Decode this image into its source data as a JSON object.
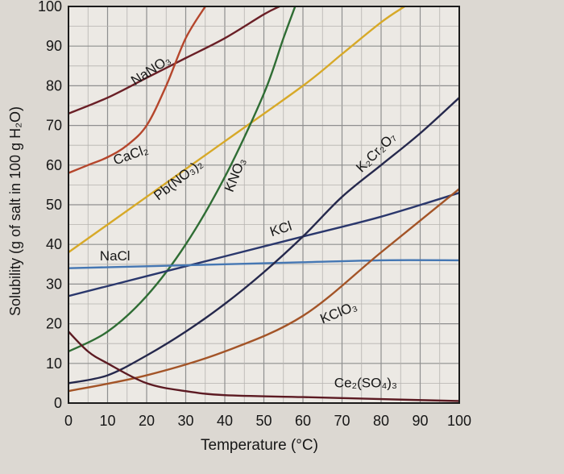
{
  "chart_data": {
    "type": "line",
    "title": "",
    "xlabel": "Temperature (°C)",
    "ylabel": "Solubility (g of salt in 100 g H₂O)",
    "xlim": [
      0,
      100
    ],
    "ylim": [
      0,
      100
    ],
    "x_ticks": [
      "0",
      "10",
      "20",
      "30",
      "40",
      "50",
      "60",
      "70",
      "80",
      "90",
      "100"
    ],
    "y_ticks": [
      "0",
      "10",
      "20",
      "30",
      "40",
      "50",
      "60",
      "70",
      "80",
      "90",
      "100"
    ],
    "grid": true,
    "legend": "none",
    "series": [
      {
        "name": "NaNO₃",
        "color": "#6a1f26",
        "label_x": 17,
        "label_y": 80,
        "label_rot": -33,
        "points": [
          [
            0,
            73
          ],
          [
            10,
            77
          ],
          [
            20,
            82
          ],
          [
            30,
            87
          ],
          [
            40,
            92
          ],
          [
            50,
            98
          ],
          [
            54,
            100
          ]
        ]
      },
      {
        "name": "CaCl₂",
        "color": "#b5462c",
        "label_x": 12,
        "label_y": 60,
        "label_rot": -20,
        "points": [
          [
            0,
            58
          ],
          [
            5,
            60
          ],
          [
            10,
            62
          ],
          [
            15,
            65
          ],
          [
            20,
            70
          ],
          [
            25,
            80
          ],
          [
            30,
            92
          ],
          [
            35,
            100
          ]
        ]
      },
      {
        "name": "Pb(NO₃)₂",
        "color": "#d7a928",
        "label_x": 23,
        "label_y": 51,
        "label_rot": -38,
        "points": [
          [
            0,
            38
          ],
          [
            20,
            52
          ],
          [
            40,
            66
          ],
          [
            60,
            80
          ],
          [
            70,
            88
          ],
          [
            80,
            96
          ],
          [
            86,
            100
          ]
        ]
      },
      {
        "name": "KNO₃",
        "color": "#2f6d34",
        "label_x": 42,
        "label_y": 53,
        "label_rot": -68,
        "points": [
          [
            0,
            13
          ],
          [
            10,
            18
          ],
          [
            20,
            27
          ],
          [
            30,
            40
          ],
          [
            40,
            57
          ],
          [
            50,
            78
          ],
          [
            55,
            92
          ],
          [
            58,
            100
          ]
        ]
      },
      {
        "name": "KCl",
        "color": "#2a376c",
        "label_x": 52,
        "label_y": 42,
        "label_rot": -18,
        "points": [
          [
            0,
            27
          ],
          [
            20,
            32
          ],
          [
            40,
            37
          ],
          [
            60,
            42
          ],
          [
            80,
            47
          ],
          [
            100,
            53
          ]
        ]
      },
      {
        "name": "NaCl",
        "color": "#4577b3",
        "label_x": 8,
        "label_y": 36,
        "label_rot": 0,
        "points": [
          [
            0,
            34
          ],
          [
            20,
            34.5
          ],
          [
            40,
            35
          ],
          [
            60,
            35.5
          ],
          [
            80,
            36
          ],
          [
            100,
            36
          ]
        ]
      },
      {
        "name": "K₂Cr₂O₇",
        "color": "#25284c",
        "label_x": 75,
        "label_y": 58,
        "label_rot": -45,
        "points": [
          [
            0,
            5
          ],
          [
            10,
            7
          ],
          [
            20,
            12
          ],
          [
            30,
            18
          ],
          [
            40,
            25
          ],
          [
            50,
            33
          ],
          [
            60,
            42
          ],
          [
            70,
            52
          ],
          [
            80,
            60
          ],
          [
            90,
            68
          ],
          [
            100,
            77
          ]
        ]
      },
      {
        "name": "KClO₃",
        "color": "#a35427",
        "label_x": 65,
        "label_y": 20,
        "label_rot": -22,
        "points": [
          [
            0,
            3
          ],
          [
            20,
            7
          ],
          [
            40,
            13
          ],
          [
            60,
            22
          ],
          [
            80,
            38
          ],
          [
            100,
            54
          ]
        ]
      },
      {
        "name": "Ce₂(SO₄)₃",
        "color": "#5c1a22",
        "label_x": 68,
        "label_y": 4,
        "label_rot": 0,
        "points": [
          [
            0,
            18
          ],
          [
            5,
            13
          ],
          [
            10,
            10
          ],
          [
            20,
            5
          ],
          [
            30,
            3
          ],
          [
            40,
            2
          ],
          [
            60,
            1.5
          ],
          [
            80,
            1
          ],
          [
            100,
            0.5
          ]
        ]
      }
    ]
  }
}
